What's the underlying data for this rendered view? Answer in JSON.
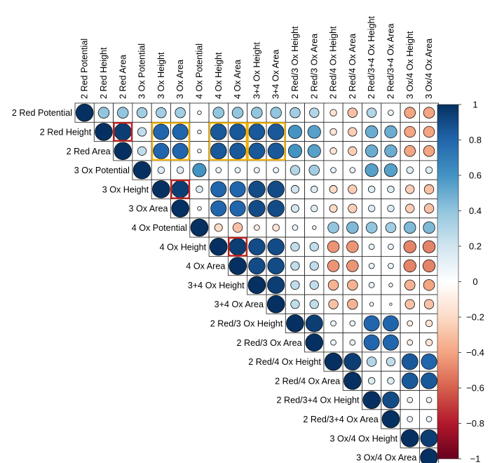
{
  "chart_data": {
    "type": "heatmap",
    "style": "correlation-circles-upper-triangle",
    "variables": [
      "2 Red Potential",
      "2 Red Height",
      "2 Red Area",
      "3 Ox Potential",
      "3 Ox Height",
      "3 Ox Area",
      "4 Ox Potential",
      "4 Ox Height",
      "4 Ox Area",
      "3+4 Ox Height",
      "3+4 Ox Area",
      "2 Red/3 Ox Height",
      "2 Red/3 Ox Area",
      "2 Red/4 Ox Height",
      "2 Red/4 Ox Area",
      "2 Red/3+4 Ox Height",
      "2 Red/3+4 Ox Area",
      "3 Ox/4 Ox Height",
      "3 Ox/4 Ox Area"
    ],
    "upper_triangle_rows": [
      [
        1.0,
        0.4,
        0.4,
        0.35,
        0.35,
        0.35,
        0.05,
        0.4,
        0.4,
        0.4,
        0.4,
        0.35,
        0.3,
        -0.15,
        -0.3,
        0.3,
        0.1,
        -0.4,
        -0.4
      ],
      [
        1.0,
        0.95,
        0.25,
        0.8,
        0.8,
        0.05,
        0.85,
        0.85,
        0.85,
        0.85,
        0.6,
        0.55,
        -0.15,
        -0.25,
        0.5,
        0.5,
        -0.4,
        -0.4
      ],
      [
        1.0,
        0.25,
        0.8,
        0.8,
        0.05,
        0.85,
        0.85,
        0.85,
        0.85,
        0.6,
        0.55,
        -0.15,
        -0.25,
        0.5,
        0.5,
        -0.4,
        -0.4
      ],
      [
        1.0,
        0.15,
        0.15,
        0.6,
        0.1,
        0.1,
        0.1,
        0.1,
        0.3,
        0.35,
        0.1,
        0.1,
        0.55,
        0.55,
        0.15,
        0.15
      ],
      [
        1.0,
        0.95,
        0.15,
        0.8,
        0.8,
        0.9,
        0.9,
        0.2,
        0.15,
        -0.2,
        -0.25,
        0.15,
        0.15,
        -0.25,
        -0.3
      ],
      [
        1.0,
        0.05,
        0.8,
        0.8,
        0.9,
        0.9,
        0.2,
        0.15,
        -0.2,
        -0.25,
        0.15,
        0.15,
        -0.25,
        -0.3
      ],
      [
        1.0,
        -0.2,
        -0.3,
        -0.1,
        -0.15,
        0.1,
        0.05,
        0.4,
        0.45,
        0.4,
        0.35,
        0.45,
        0.45
      ],
      [
        1.0,
        0.95,
        0.9,
        0.9,
        0.25,
        0.25,
        -0.45,
        -0.45,
        0.1,
        0.1,
        -0.5,
        -0.5
      ],
      [
        1.0,
        0.9,
        0.9,
        0.25,
        0.25,
        -0.45,
        -0.45,
        0.1,
        0.1,
        -0.5,
        -0.5
      ],
      [
        1.0,
        0.95,
        0.25,
        0.25,
        -0.35,
        -0.35,
        0.1,
        0.05,
        -0.35,
        -0.4
      ],
      [
        1.0,
        0.25,
        0.25,
        -0.3,
        -0.35,
        0.05,
        0.02,
        -0.3,
        -0.3
      ],
      [
        1.0,
        0.95,
        0.1,
        0.1,
        0.8,
        0.8,
        -0.1,
        -0.15
      ],
      [
        1.0,
        0.1,
        0.1,
        0.8,
        0.8,
        -0.1,
        -0.15
      ],
      [
        1.0,
        0.95,
        0.3,
        0.25,
        0.85,
        0.8
      ],
      [
        1.0,
        0.15,
        0.15,
        0.85,
        0.85
      ],
      [
        1.0,
        0.9,
        0.1,
        0.1
      ],
      [
        1.0,
        0.1,
        0.1
      ],
      [
        1.0,
        0.95
      ],
      [
        1.0
      ]
    ],
    "highlights": [
      {
        "color": "#cc1f1f",
        "rows": [
          1,
          1
        ],
        "cols": [
          2,
          2
        ]
      },
      {
        "color": "#cc1f1f",
        "rows": [
          4,
          4
        ],
        "cols": [
          5,
          5
        ]
      },
      {
        "color": "#cc1f1f",
        "rows": [
          7,
          7
        ],
        "cols": [
          8,
          8
        ]
      },
      {
        "color": "#f2b100",
        "rows": [
          1,
          2
        ],
        "cols": [
          4,
          5
        ]
      },
      {
        "color": "#f2b100",
        "rows": [
          1,
          2
        ],
        "cols": [
          7,
          8
        ]
      },
      {
        "color": "#f2b100",
        "rows": [
          1,
          2
        ],
        "cols": [
          9,
          10
        ]
      }
    ],
    "colorbar": {
      "range": [
        -1,
        1
      ],
      "tick_labels": [
        "1",
        "0.8",
        "0.6",
        "0.4",
        "0.2",
        "0",
        "−0.2",
        "−0.4",
        "−0.6",
        "−0.8",
        "−1"
      ],
      "palette": [
        "#67001f",
        "#b2182b",
        "#d6604d",
        "#f4a582",
        "#fddbc7",
        "#ffffff",
        "#d1e5f0",
        "#92c5de",
        "#4393c3",
        "#2166ac",
        "#053061"
      ]
    },
    "title": "",
    "xlabel": "",
    "ylabel": ""
  }
}
